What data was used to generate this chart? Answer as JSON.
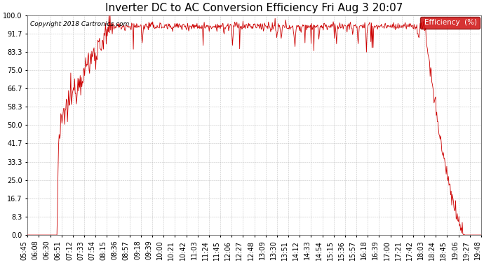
{
  "title": "Inverter DC to AC Conversion Efficiency Fri Aug 3 20:07",
  "copyright": "Copyright 2018 Cartronics.com",
  "legend_label": "Efficiency  (%)",
  "legend_bg": "#cc0000",
  "legend_text_color": "#ffffff",
  "line_color": "#cc0000",
  "bg_color": "#ffffff",
  "plot_bg_color": "#ffffff",
  "grid_color": "#aaaaaa",
  "ylim": [
    0,
    100
  ],
  "yticks": [
    0.0,
    8.3,
    16.7,
    25.0,
    33.3,
    41.7,
    50.0,
    58.3,
    66.7,
    75.0,
    83.3,
    91.7,
    100.0
  ],
  "xlabel_rotation": 90,
  "title_fontsize": 11,
  "tick_fontsize": 7,
  "x_tick_labels": [
    "05:45",
    "06:08",
    "06:30",
    "06:51",
    "07:12",
    "07:33",
    "07:54",
    "08:15",
    "08:36",
    "08:57",
    "09:18",
    "09:39",
    "10:00",
    "10:21",
    "10:42",
    "11:03",
    "11:24",
    "11:45",
    "12:06",
    "12:27",
    "12:48",
    "13:09",
    "13:30",
    "13:51",
    "14:12",
    "14:33",
    "14:54",
    "15:15",
    "15:36",
    "15:57",
    "16:18",
    "16:39",
    "17:00",
    "17:21",
    "17:42",
    "18:03",
    "18:24",
    "18:45",
    "19:06",
    "19:27",
    "19:48"
  ]
}
